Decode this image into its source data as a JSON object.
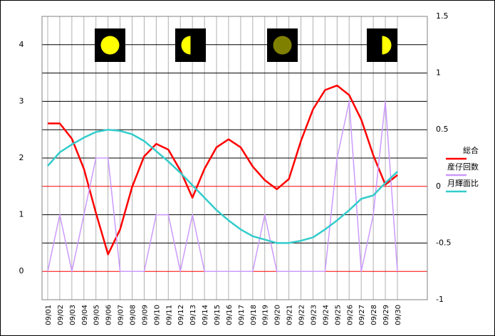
{
  "chart_data": {
    "type": "line",
    "categories": [
      "09/01",
      "09/02",
      "09/03",
      "09/04",
      "09/05",
      "09/06",
      "09/07",
      "09/08",
      "09/09",
      "09/10",
      "09/11",
      "09/12",
      "09/13",
      "09/14",
      "09/15",
      "09/16",
      "09/17",
      "09/18",
      "09/19",
      "09/20",
      "09/21",
      "09/22",
      "09/23",
      "09/24",
      "09/25",
      "09/26",
      "09/27",
      "09/28",
      "09/29",
      "09/30"
    ],
    "series": [
      {
        "name": "総合",
        "color": "#ff0000",
        "axis": "y",
        "values": [
          2.61,
          2.61,
          2.34,
          1.81,
          1.03,
          0.3,
          0.74,
          1.49,
          2.03,
          2.25,
          2.15,
          1.78,
          1.3,
          1.81,
          2.19,
          2.33,
          2.19,
          1.85,
          1.61,
          1.45,
          1.63,
          2.3,
          2.86,
          3.2,
          3.28,
          3.11,
          2.68,
          2.05,
          1.53,
          1.7
        ]
      },
      {
        "name": "産仔回数",
        "color": "#cc99ff",
        "axis": "y",
        "values": [
          0,
          1,
          0,
          1,
          2,
          2,
          0,
          0,
          0,
          1,
          1,
          0,
          1,
          0,
          0,
          0,
          0,
          0,
          1,
          0,
          0,
          0,
          0,
          0,
          2,
          3,
          0,
          1,
          3,
          0
        ]
      },
      {
        "name": "月輝面比",
        "color": "#33cccc",
        "axis": "y2",
        "values": [
          0.18,
          0.3,
          0.37,
          0.43,
          0.48,
          0.5,
          0.49,
          0.46,
          0.4,
          0.31,
          0.22,
          0.12,
          0.01,
          -0.1,
          -0.21,
          -0.3,
          -0.38,
          -0.44,
          -0.47,
          -0.5,
          -0.5,
          -0.48,
          -0.45,
          -0.38,
          -0.3,
          -0.21,
          -0.11,
          -0.08,
          0.03,
          0.13
        ]
      }
    ],
    "ylim": [
      -0.5,
      4.5
    ],
    "yticks": [
      0,
      1,
      2,
      3,
      4
    ],
    "y2lim": [
      -1,
      1.5
    ],
    "y2ticks": [
      -1,
      -0.5,
      0,
      0.5,
      1,
      1.5
    ],
    "grid": true,
    "grid_color": "#000000",
    "zero_line_color": "#ff0000",
    "legend": "right"
  }
}
